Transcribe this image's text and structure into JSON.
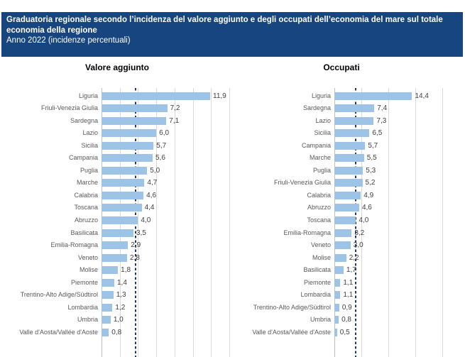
{
  "header": {
    "title": "Graduatoria regionale secondo l’incidenza del valore aggiunto e degli occupati dell’economia del mare sul totale economia della regione",
    "subtitle": "Anno 2022 (incidenze percentuali)",
    "background_color": "#17457F",
    "text_color": "#FFFFFF"
  },
  "style": {
    "bar_color": "#9DC3E6",
    "gridline_color": "#D9D9D9",
    "axis_color": "#BFBFBF",
    "reference_line_color": "#1F3864",
    "category_label_color": "#595959",
    "value_label_color": "#404040"
  },
  "chart_data": [
    {
      "type": "bar",
      "orientation": "horizontal",
      "title": "Valore aggiunto",
      "unit": "incidenza percentuale",
      "decimal_separator": ",",
      "categories": [
        "Liguria",
        "Friuli-Venezia Giulia",
        "Sardegna",
        "Lazio",
        "Sicilia",
        "Campania",
        "Puglia",
        "Marche",
        "Calabria",
        "Toscana",
        "Abruzzo",
        "Basilicata",
        "Emilia-Romagna",
        "Veneto",
        "Molise",
        "Piemonte",
        "Trentino-Alto Adige/Südtirol",
        "Lombardia",
        "Umbria",
        "Valle d'Aosta/Vallée d'Aoste"
      ],
      "values": [
        11.9,
        7.2,
        7.1,
        6.0,
        5.7,
        5.6,
        5.0,
        4.7,
        4.6,
        4.4,
        4.0,
        3.5,
        2.9,
        2.8,
        1.8,
        1.4,
        1.3,
        1.2,
        1.0,
        0.8
      ],
      "xlim": [
        0,
        14
      ],
      "gridline_step": 2,
      "grid": true,
      "reference_line": 3.7,
      "legend": "none"
    },
    {
      "type": "bar",
      "orientation": "horizontal",
      "title": "Occupati",
      "unit": "incidenza percentuale",
      "decimal_separator": ",",
      "categories": [
        "Liguria",
        "Sardegna",
        "Lazio",
        "Sicilia",
        "Campania",
        "Marche",
        "Puglia",
        "Friuli-Venezia Giulia",
        "Calabria",
        "Abruzzo",
        "Toscana",
        "Emilia-Romagna",
        "Veneto",
        "Molise",
        "Basilicata",
        "Piemonte",
        "Lombardia",
        "Trentino-Alto Adige/Südtirol",
        "Umbria",
        "Valle d'Aosta/Vallée d'Aoste"
      ],
      "values": [
        14.4,
        7.4,
        7.3,
        6.5,
        5.7,
        5.5,
        5.3,
        5.2,
        4.9,
        4.6,
        4.0,
        3.2,
        3.0,
        2.2,
        1.7,
        1.1,
        1.1,
        0.9,
        0.8,
        0.5
      ],
      "xlim": [
        0,
        20
      ],
      "gridline_step": 5,
      "grid": true,
      "reference_line": 4.0,
      "legend": "none"
    }
  ]
}
